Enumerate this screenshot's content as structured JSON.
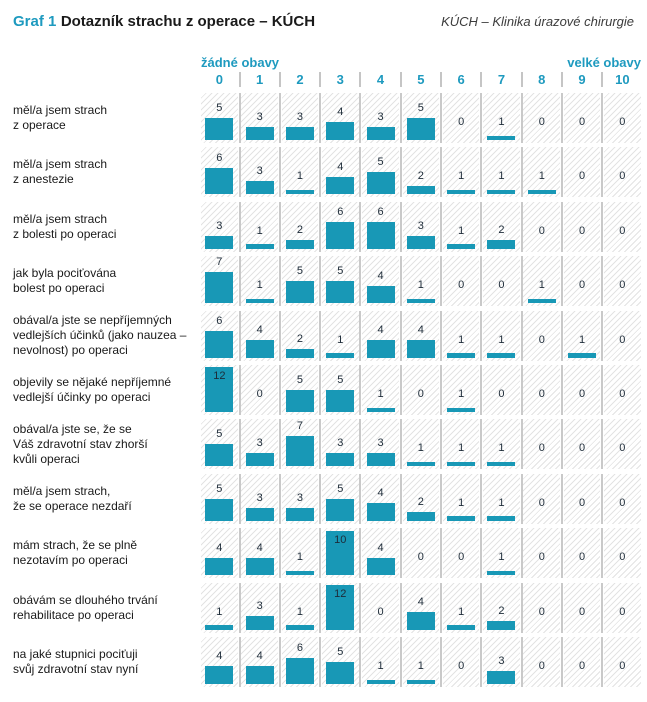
{
  "header": {
    "figure_label": "Graf 1",
    "title": "Dotazník strachu z operace – KÚCH",
    "note": "KÚCH – Klinika úrazové chirurgie"
  },
  "colors": {
    "bar": "#1898b6",
    "accent_text": "#1e9abf",
    "hatch_line": "#e3e3e3",
    "separator": "#c9c9c9",
    "value_label": "#1d2b38"
  },
  "chart_data": {
    "type": "bar",
    "title": "Dotazník strachu z operace – KÚCH",
    "subtitle": "KÚCH – Klinika úrazové chirurgie",
    "xlabel": "",
    "ylabel": "",
    "scale_min_label": "žádné obavy",
    "scale_max_label": "velké obavy",
    "categories": [
      "0",
      "1",
      "2",
      "3",
      "4",
      "5",
      "6",
      "7",
      "8",
      "9",
      "10"
    ],
    "ylim": [
      0,
      12
    ],
    "grid": "hatched column stripes, no numeric axis",
    "legend_position": "none",
    "series": [
      {
        "name": "měl/a jsem strach\nz operace",
        "values": [
          5,
          3,
          3,
          4,
          3,
          5,
          0,
          1,
          0,
          0,
          0
        ]
      },
      {
        "name": "měl/a jsem strach\nz anestezie",
        "values": [
          6,
          3,
          1,
          4,
          5,
          2,
          1,
          1,
          1,
          0,
          0
        ]
      },
      {
        "name": "měl/a jsem strach\nz bolesti po operaci",
        "values": [
          3,
          1,
          2,
          6,
          6,
          3,
          1,
          2,
          0,
          0,
          0
        ]
      },
      {
        "name": "jak byla pociťována\nbolest po operaci",
        "values": [
          7,
          1,
          5,
          5,
          4,
          1,
          0,
          0,
          1,
          0,
          0
        ]
      },
      {
        "name": "obával/a jste se nepříjemných\nvedlejších účinků (jako nauzea –\nnevolnost) po operaci",
        "values": [
          6,
          4,
          2,
          1,
          4,
          4,
          1,
          1,
          0,
          1,
          0
        ]
      },
      {
        "name": "objevily se nějaké nepříjemné\nvedlejší účinky po operaci",
        "values": [
          12,
          0,
          5,
          5,
          1,
          0,
          1,
          0,
          0,
          0,
          0
        ]
      },
      {
        "name": "obával/a jste se, že se\nVáš zdravotní stav zhorší\nkvůli operaci",
        "values": [
          5,
          3,
          7,
          3,
          3,
          1,
          1,
          1,
          0,
          0,
          0
        ]
      },
      {
        "name": "měl/a jsem strach,\nže se operace nezdaří",
        "values": [
          5,
          3,
          3,
          5,
          4,
          2,
          1,
          1,
          0,
          0,
          0
        ]
      },
      {
        "name": "mám strach, že se plně\nnezotavím po operaci",
        "values": [
          4,
          4,
          1,
          10,
          4,
          0,
          0,
          1,
          0,
          0,
          0
        ]
      },
      {
        "name": "obávám se dlouhého trvání\nrehabilitace po operaci",
        "values": [
          1,
          3,
          1,
          12,
          0,
          4,
          1,
          2,
          0,
          0,
          0
        ]
      },
      {
        "name": "na jaké stupnici pociťuji\nsvůj zdravotní stav nyní",
        "values": [
          4,
          4,
          6,
          5,
          1,
          1,
          0,
          3,
          0,
          0,
          0
        ]
      }
    ]
  }
}
